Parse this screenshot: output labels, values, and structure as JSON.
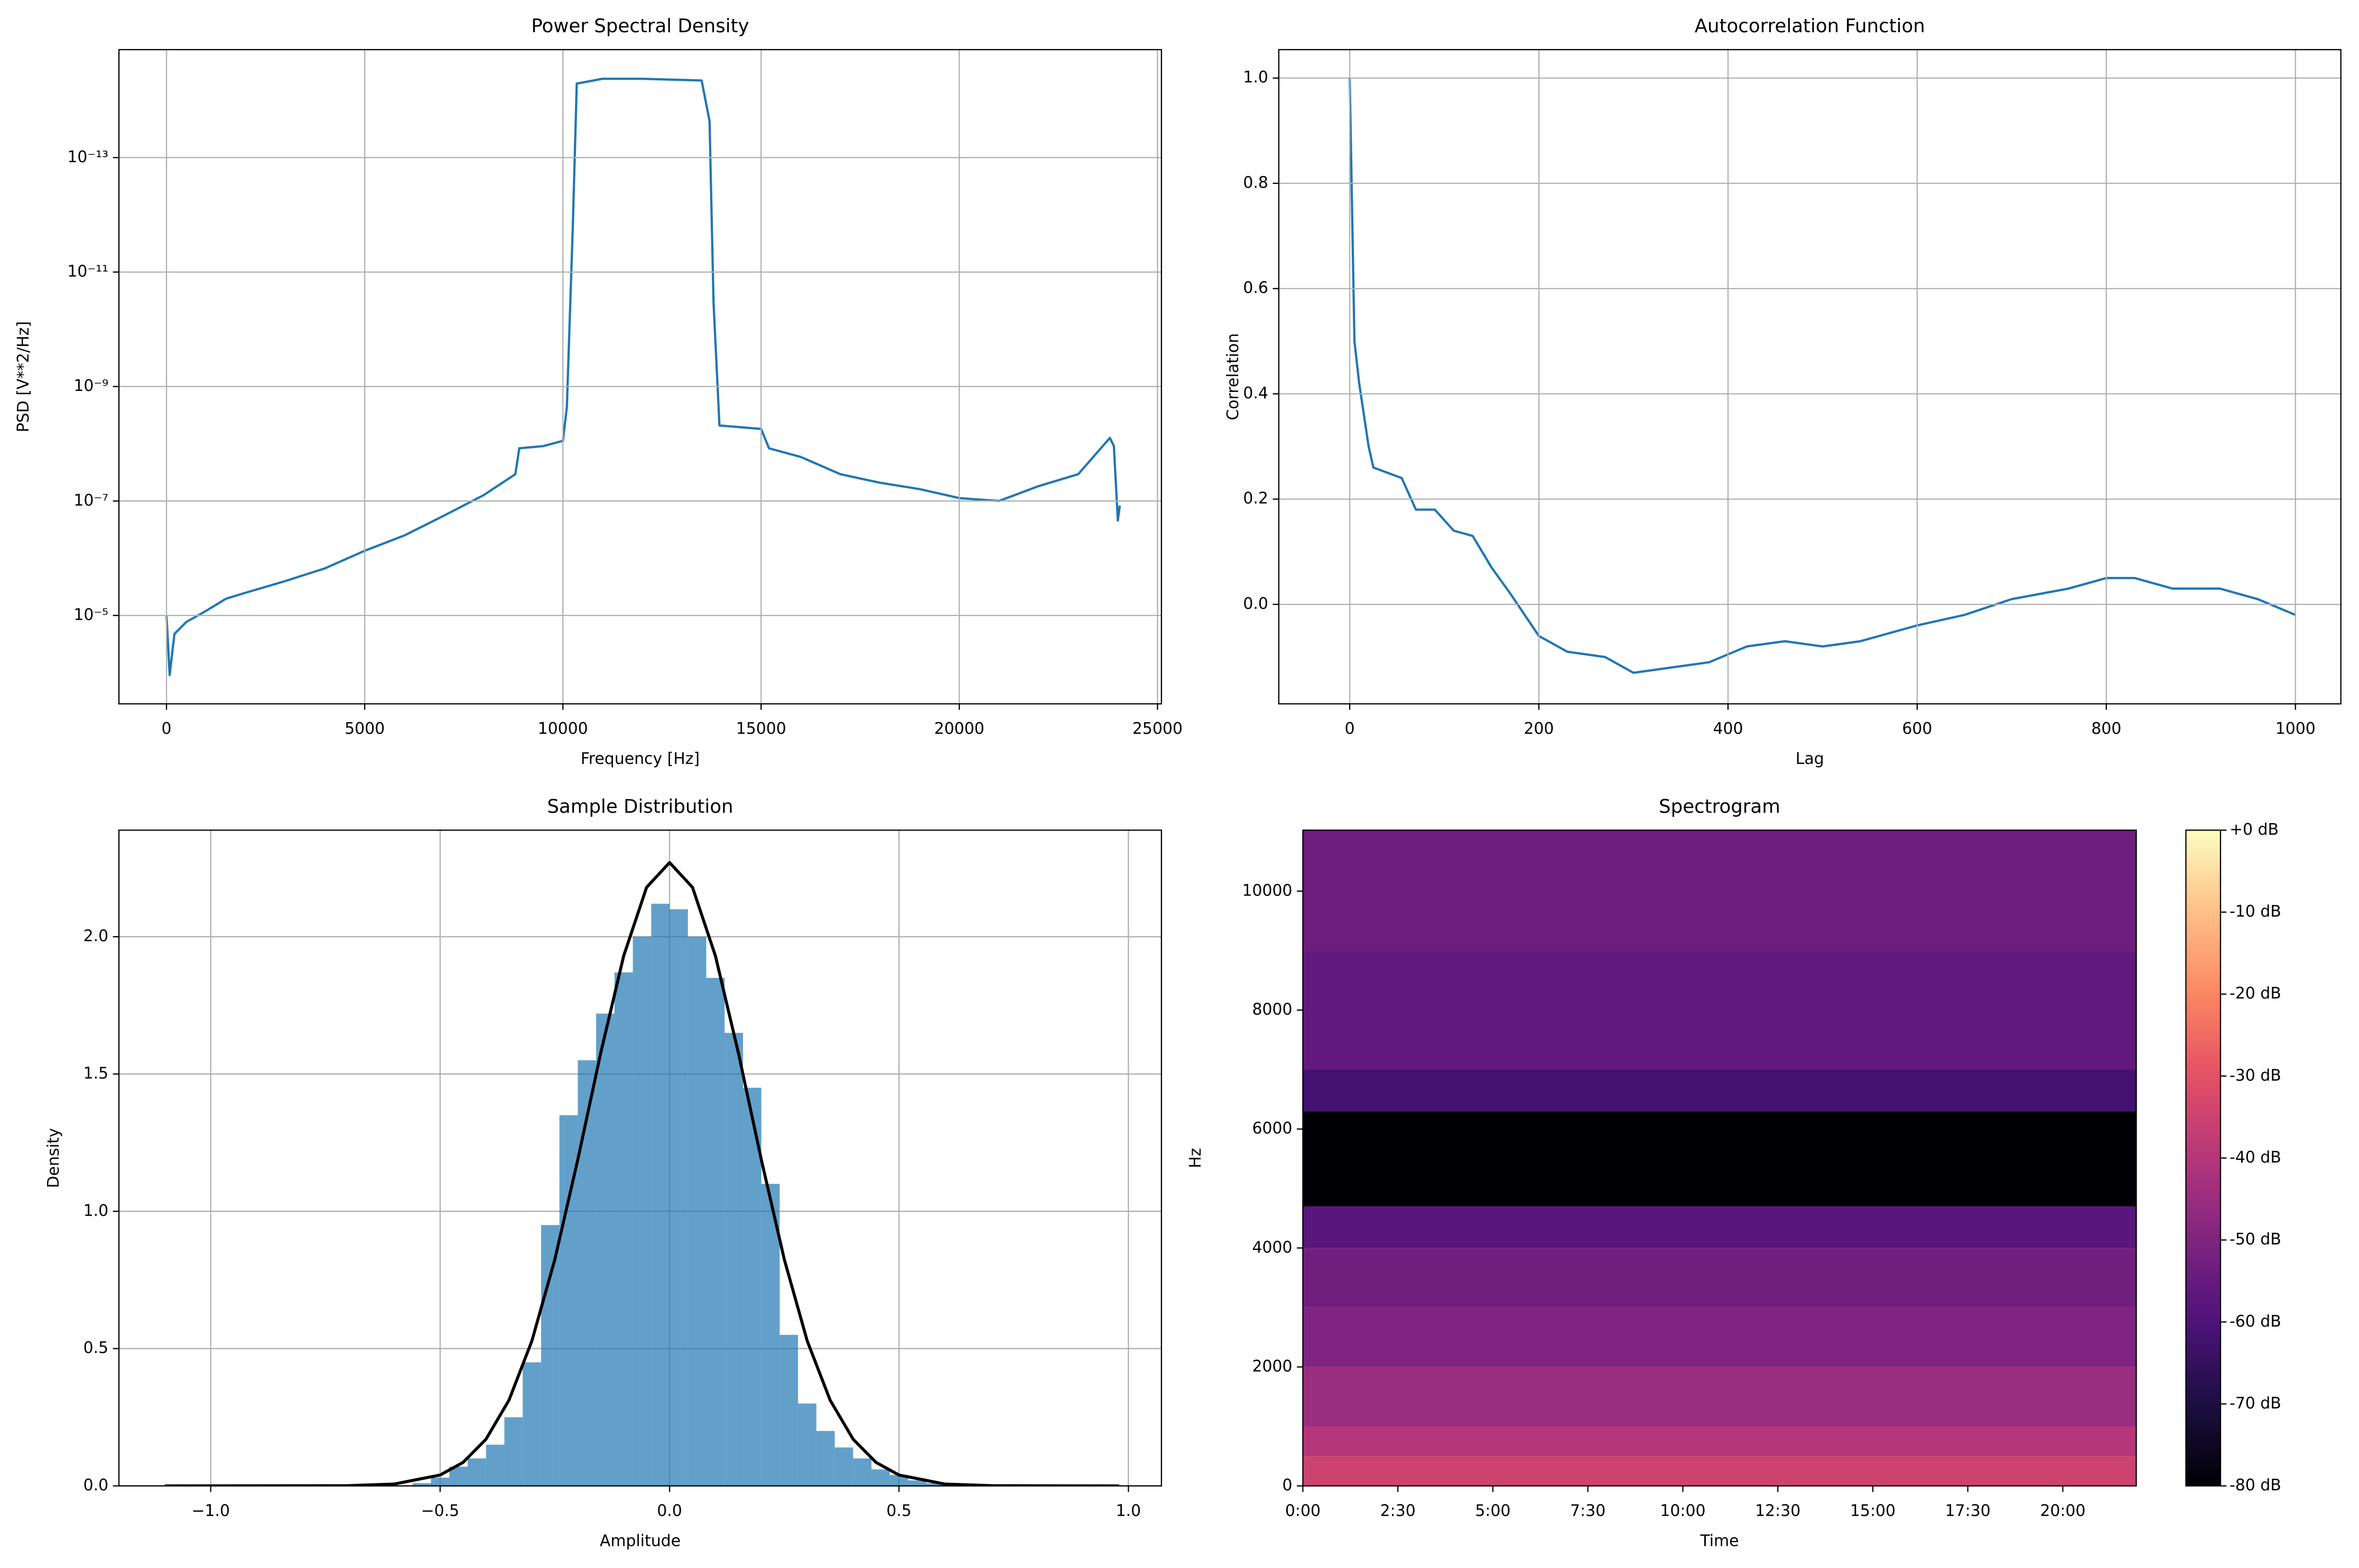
{
  "chart_data": [
    {
      "type": "line",
      "title": "Power Spectral Density",
      "xlabel": "Frequency [Hz]",
      "ylabel": "PSD [V**2/Hz]",
      "yscale": "log",
      "grid": true,
      "color": "#1f77b4",
      "x": [
        0,
        80,
        200,
        500,
        1000,
        1500,
        2000,
        3000,
        4000,
        5000,
        6000,
        7000,
        8000,
        8800,
        8900,
        9500,
        10000,
        10100,
        10250,
        10350,
        11000,
        12000,
        13500,
        13700,
        13800,
        13950,
        15000,
        15200,
        16000,
        17000,
        18000,
        19000,
        20000,
        21000,
        22000,
        23000,
        23800,
        23900,
        24000,
        24050
      ],
      "values": [
        1e-05,
        0.00011,
        2.1e-05,
        1.3e-05,
        8.3e-06,
        5.1e-06,
        4e-06,
        2.5e-06,
        1.5e-06,
        7.4e-07,
        4e-07,
        1.8e-07,
        7.9e-08,
        3.4e-08,
        1.2e-08,
        1.1e-08,
        8.9e-09,
        2.3e-09,
        1.6e-12,
        5.1e-15,
        4.2e-15,
        4.2e-15,
        4.5e-15,
        2.3e-14,
        3.4e-11,
        4.8e-09,
        5.5e-09,
        1.2e-08,
        1.7e-08,
        3.4e-08,
        4.8e-08,
        6.2e-08,
        8.9e-08,
        1e-07,
        5.5e-08,
        3.4e-08,
        7.9e-09,
        1.1e-08,
        2.2e-07,
        1.2e-07
      ],
      "xlim": [
        -1200,
        25100
      ],
      "xticks": [
        0,
        5000,
        10000,
        15000,
        20000,
        25000
      ],
      "ylim": [
        0.00035,
        1.3e-15
      ],
      "yticks": [
        {
          "value": 1e-05,
          "label": "10⁻⁵"
        },
        {
          "value": 1e-07,
          "label": "10⁻⁷"
        },
        {
          "value": 1e-09,
          "label": "10⁻⁹"
        },
        {
          "value": 1e-11,
          "label": "10⁻¹¹"
        },
        {
          "value": 1e-13,
          "label": "10⁻¹³"
        }
      ]
    },
    {
      "type": "line",
      "title": "Autocorrelation Function",
      "xlabel": "Lag",
      "ylabel": "Correlation",
      "grid": true,
      "color": "#1f77b4",
      "x": [
        0,
        5,
        10,
        20,
        25,
        40,
        55,
        70,
        90,
        110,
        130,
        150,
        170,
        200,
        230,
        270,
        300,
        340,
        380,
        420,
        460,
        500,
        540,
        600,
        650,
        700,
        760,
        800,
        830,
        870,
        920,
        960,
        1000
      ],
      "values": [
        1.0,
        0.5,
        0.42,
        0.3,
        0.26,
        0.25,
        0.24,
        0.18,
        0.18,
        0.14,
        0.13,
        0.07,
        0.02,
        -0.06,
        -0.09,
        -0.1,
        -0.13,
        -0.12,
        -0.11,
        -0.08,
        -0.07,
        -0.08,
        -0.07,
        -0.04,
        -0.02,
        0.01,
        0.03,
        0.05,
        0.05,
        0.03,
        0.03,
        0.01,
        -0.02
      ],
      "xlim": [
        -75,
        1048
      ],
      "xticks": [
        0,
        200,
        400,
        600,
        800,
        1000
      ],
      "ylim": [
        -0.189,
        1.054
      ],
      "yticks": [
        {
          "value": 0,
          "label": "0.0"
        },
        0.2,
        0.4,
        0.6,
        0.8,
        {
          "value": 1,
          "label": "1.0"
        }
      ]
    },
    {
      "type": "histogram",
      "title": "Sample Distribution",
      "xlabel": "Amplitude",
      "ylabel": "Density",
      "grid": true,
      "color": "#1f77b4",
      "alpha": 0.7,
      "bins": [
        -0.56,
        -0.52,
        -0.48,
        -0.44,
        -0.4,
        -0.36,
        -0.32,
        -0.28,
        -0.24,
        -0.2,
        -0.16,
        -0.12,
        -0.08,
        -0.04,
        0.0,
        0.04,
        0.08,
        0.12,
        0.16,
        0.2,
        0.24,
        0.28,
        0.32,
        0.36,
        0.4,
        0.44,
        0.48,
        0.52,
        0.56,
        0.6
      ],
      "values": [
        0.01,
        0.03,
        0.07,
        0.1,
        0.15,
        0.25,
        0.45,
        0.95,
        1.35,
        1.55,
        1.72,
        1.87,
        2.0,
        2.12,
        2.1,
        2.0,
        1.85,
        1.65,
        1.45,
        1.1,
        0.55,
        0.3,
        0.2,
        0.14,
        0.1,
        0.06,
        0.04,
        0.02,
        0.01
      ],
      "curve": {
        "color": "#000000",
        "x": [
          -1.1,
          -0.7,
          -0.6,
          -0.5,
          -0.45,
          -0.4,
          -0.35,
          -0.3,
          -0.25,
          -0.2,
          -0.15,
          -0.1,
          -0.05,
          0,
          0.05,
          0.1,
          0.15,
          0.2,
          0.25,
          0.3,
          0.35,
          0.4,
          0.45,
          0.5,
          0.6,
          0.7,
          0.98
        ],
        "values": [
          0,
          0.0008,
          0.0067,
          0.0396,
          0.0855,
          0.17,
          0.312,
          0.528,
          0.825,
          1.188,
          1.577,
          1.93,
          2.18,
          2.27,
          2.18,
          1.93,
          1.577,
          1.188,
          0.825,
          0.528,
          0.312,
          0.17,
          0.0855,
          0.0396,
          0.0067,
          0.0008,
          0
        ]
      },
      "xlim": [
        -1.2,
        1.072
      ],
      "xticks": [
        {
          "value": -1,
          "label": "−1.0"
        },
        {
          "value": -0.5,
          "label": "−0.5"
        },
        {
          "value": 0,
          "label": "0.0"
        },
        0.5,
        {
          "value": 1,
          "label": "1.0"
        }
      ],
      "ylim": [
        0,
        2.388
      ],
      "yticks": [
        {
          "value": 0,
          "label": "0.0"
        },
        0.5,
        {
          "value": 1,
          "label": "1.0"
        },
        1.5,
        {
          "value": 2,
          "label": "2.0"
        }
      ]
    },
    {
      "type": "spectrogram",
      "title": "Spectrogram",
      "xlabel": "Time",
      "ylabel": "Hz",
      "colormap": "magma",
      "bands": [
        0,
        500,
        1000,
        2000,
        3000,
        4000,
        4700,
        6300,
        7000,
        9000,
        11025
      ],
      "values": [
        -35,
        -40,
        -45,
        -50,
        -53,
        -58,
        -80,
        -62,
        -56,
        -54
      ],
      "xlim": [
        0,
        1316
      ],
      "xticks": [
        {
          "value": 0,
          "label": "0:00"
        },
        {
          "value": 150,
          "label": "2:30"
        },
        {
          "value": 300,
          "label": "5:00"
        },
        {
          "value": 450,
          "label": "7:30"
        },
        {
          "value": 600,
          "label": "10:00"
        },
        {
          "value": 750,
          "label": "12:30"
        },
        {
          "value": 900,
          "label": "15:00"
        },
        {
          "value": 1050,
          "label": "17:30"
        },
        {
          "value": 1200,
          "label": "20:00"
        }
      ],
      "ylim": [
        0,
        11025
      ],
      "yticks": [
        0,
        2000,
        4000,
        6000,
        8000,
        10000
      ],
      "clim": [
        -80,
        0
      ],
      "cticks": [
        {
          "value": 0,
          "label": "+0 dB"
        },
        {
          "value": -10,
          "label": "-10 dB"
        },
        {
          "value": -20,
          "label": "-20 dB"
        },
        {
          "value": -30,
          "label": "-30 dB"
        },
        {
          "value": -40,
          "label": "-40 dB"
        },
        {
          "value": -50,
          "label": "-50 dB"
        },
        {
          "value": -60,
          "label": "-60 dB"
        },
        {
          "value": -70,
          "label": "-70 dB"
        },
        {
          "value": -80,
          "label": "-80 dB"
        }
      ]
    }
  ]
}
